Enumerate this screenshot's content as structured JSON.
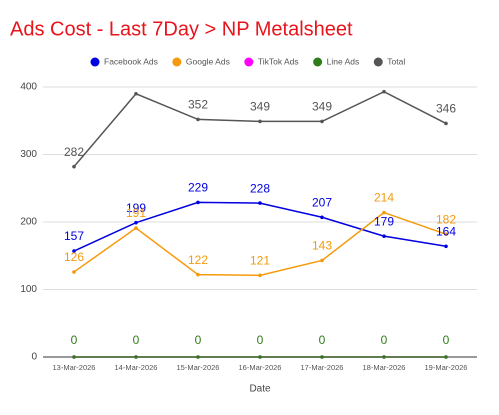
{
  "chart_data": {
    "type": "line",
    "title": "Ads Cost - Last 7Day > NP Metalsheet",
    "x_label": "Date",
    "categories": [
      "13-Mar-2026",
      "14-Mar-2026",
      "15-Mar-2026",
      "16-Mar-2026",
      "17-Mar-2026",
      "18-Mar-2026",
      "19-Mar-2026"
    ],
    "series": [
      {
        "name": "Facebook Ads",
        "color": "#0000e0",
        "values": [
          157,
          199,
          229,
          228,
          207,
          179,
          164
        ]
      },
      {
        "name": "Google Ads",
        "color": "#f59a0c",
        "values": [
          126,
          191,
          122,
          121,
          143,
          214,
          182
        ]
      },
      {
        "name": "TikTok Ads",
        "color": "#ff00ff",
        "values": [
          0,
          0,
          0,
          0,
          0,
          0,
          0
        ],
        "value_labels": [
          null,
          null,
          null,
          null,
          null,
          null,
          null
        ]
      },
      {
        "name": "Line Ads",
        "color": "#2e7d1a",
        "values": [
          0,
          0,
          0,
          0,
          0,
          0,
          0
        ]
      },
      {
        "name": "Total",
        "color": "#555555",
        "values": [
          282,
          390,
          352,
          349,
          349,
          393,
          346
        ],
        "value_labels": [
          "282",
          null,
          "352",
          "349",
          "349",
          null,
          "346"
        ]
      }
    ],
    "ylim": [
      0,
      420
    ],
    "yticks": [
      0,
      100,
      200,
      300,
      400
    ],
    "grid": true,
    "legend": "top"
  }
}
